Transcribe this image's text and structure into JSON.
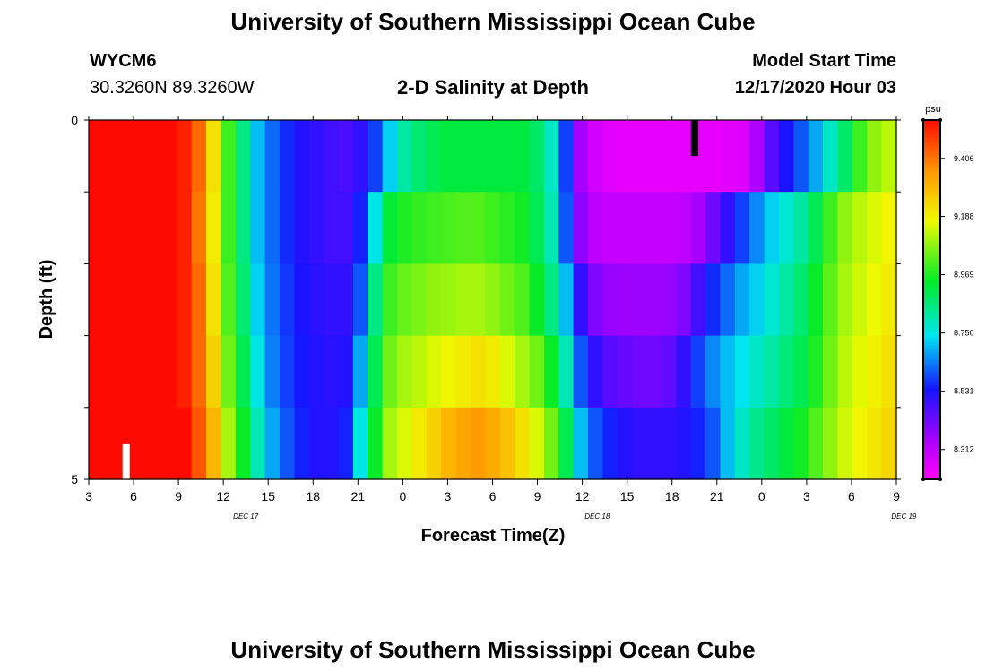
{
  "page": {
    "title_top": "University of Southern Mississippi Ocean Cube",
    "title_bottom": "University of Southern Mississippi Ocean Cube",
    "station_id": "WYCM6",
    "station_coords": "30.3260N 89.3260W",
    "plot_title": "2-D Salinity at Depth",
    "model_start_label": "Model Start Time",
    "model_start_value": "12/17/2020 Hour 03"
  },
  "chart_data": {
    "type": "heatmap",
    "title": "2-D Salinity at Depth",
    "xlabel": "Forecast Time(Z)",
    "ylabel": "Depth (ft)",
    "x_start_hour": 3,
    "x_step_hours": 1,
    "x_count": 55,
    "x_tick_labels": [
      "3",
      "6",
      "9",
      "12",
      "15",
      "18",
      "21",
      "0",
      "3",
      "6",
      "9",
      "12",
      "15",
      "18",
      "21",
      "0",
      "3",
      "6",
      "9"
    ],
    "date_labels": [
      {
        "text": "DEC 17",
        "at_hour": 13.5
      },
      {
        "text": "DEC 18",
        "at_hour": 37
      },
      {
        "text": "DEC 19",
        "at_hour": 57.5
      }
    ],
    "y_tick_labels": [
      "0",
      "5"
    ],
    "ylim": [
      0,
      5
    ],
    "depth_rows": 5,
    "colorbar": {
      "unit": "psu",
      "min": 8.2,
      "max": 9.55,
      "tick_labels": [
        "9.406",
        "9.188",
        "8.969",
        "8.750",
        "8.531",
        "8.312"
      ],
      "tick_values": [
        9.406,
        9.188,
        8.969,
        8.75,
        8.531,
        8.312
      ]
    },
    "markers": [
      {
        "name": "model start",
        "hour": 5.5,
        "depth_from": 4.5,
        "depth_to": 5.0,
        "color": "#ffffff"
      },
      {
        "name": "current time",
        "hour": 43.5,
        "depth_from": 0.0,
        "depth_to": 0.5,
        "color": "#000000"
      }
    ],
    "salinity_rows": [
      [
        9.55,
        9.55,
        9.55,
        9.55,
        9.55,
        9.55,
        9.52,
        9.42,
        9.22,
        9.0,
        8.85,
        8.7,
        8.62,
        8.56,
        8.52,
        8.5,
        8.48,
        8.47,
        8.5,
        8.58,
        8.72,
        8.82,
        8.87,
        8.9,
        8.92,
        8.92,
        8.92,
        8.92,
        8.92,
        8.92,
        8.88,
        8.78,
        8.58,
        8.35,
        8.28,
        8.25,
        8.24,
        8.24,
        8.24,
        8.24,
        8.24,
        8.24,
        8.24,
        8.25,
        8.26,
        8.34,
        8.45,
        8.53,
        8.6,
        8.68,
        8.78,
        8.88,
        9.0,
        9.08,
        9.12
      ],
      [
        9.55,
        9.55,
        9.55,
        9.55,
        9.55,
        9.55,
        9.52,
        9.4,
        9.2,
        9.0,
        8.85,
        8.7,
        8.62,
        8.56,
        8.52,
        8.5,
        8.48,
        8.48,
        8.55,
        8.75,
        8.93,
        8.97,
        8.99,
        9.0,
        9.01,
        9.02,
        9.02,
        9.0,
        8.98,
        8.96,
        8.9,
        8.8,
        8.6,
        8.38,
        8.32,
        8.3,
        8.3,
        8.3,
        8.3,
        8.3,
        8.31,
        8.35,
        8.42,
        8.5,
        8.58,
        8.65,
        8.72,
        8.77,
        8.82,
        8.9,
        9.0,
        9.08,
        9.12,
        9.15,
        9.18
      ],
      [
        9.55,
        9.55,
        9.55,
        9.55,
        9.55,
        9.55,
        9.52,
        9.42,
        9.22,
        9.02,
        8.87,
        8.72,
        8.63,
        8.57,
        8.53,
        8.51,
        8.5,
        8.5,
        8.6,
        8.85,
        9.0,
        9.04,
        9.06,
        9.08,
        9.09,
        9.1,
        9.1,
        9.08,
        9.05,
        9.02,
        8.95,
        8.85,
        8.7,
        8.5,
        8.4,
        8.37,
        8.36,
        8.36,
        8.36,
        8.37,
        8.4,
        8.48,
        8.56,
        8.62,
        8.68,
        8.72,
        8.77,
        8.82,
        8.87,
        8.95,
        9.03,
        9.1,
        9.14,
        9.17,
        9.2
      ],
      [
        9.55,
        9.55,
        9.55,
        9.55,
        9.55,
        9.55,
        9.52,
        9.42,
        9.25,
        9.05,
        8.9,
        8.75,
        8.64,
        8.58,
        8.54,
        8.52,
        8.51,
        8.52,
        8.68,
        8.9,
        9.05,
        9.1,
        9.12,
        9.15,
        9.18,
        9.2,
        9.22,
        9.2,
        9.15,
        9.1,
        9.05,
        8.95,
        8.8,
        8.6,
        8.5,
        8.45,
        8.43,
        8.42,
        8.42,
        8.44,
        8.5,
        8.58,
        8.65,
        8.7,
        8.74,
        8.78,
        8.82,
        8.86,
        8.9,
        8.97,
        9.05,
        9.12,
        9.16,
        9.19,
        9.22
      ],
      [
        9.55,
        9.55,
        9.55,
        9.55,
        9.55,
        9.55,
        9.55,
        9.45,
        9.3,
        9.1,
        8.95,
        8.8,
        8.68,
        8.6,
        8.55,
        8.52,
        8.52,
        8.55,
        8.75,
        8.95,
        9.1,
        9.15,
        9.2,
        9.25,
        9.3,
        9.33,
        9.35,
        9.32,
        9.28,
        9.22,
        9.15,
        9.05,
        8.9,
        8.7,
        8.6,
        8.55,
        8.52,
        8.5,
        8.5,
        8.5,
        8.52,
        8.55,
        8.6,
        8.7,
        8.78,
        8.84,
        8.88,
        8.92,
        8.96,
        9.02,
        9.08,
        9.14,
        9.18,
        9.21,
        9.24
      ]
    ]
  }
}
